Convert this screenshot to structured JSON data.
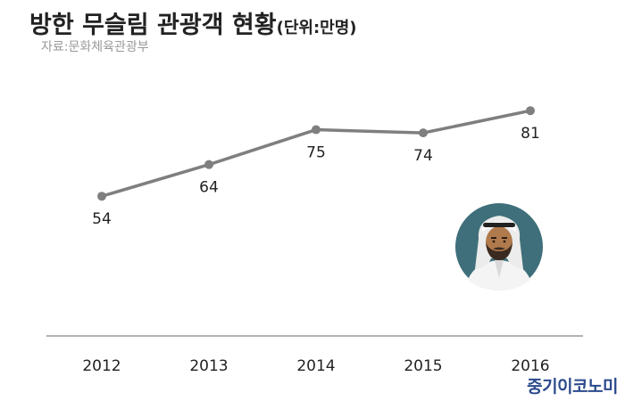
{
  "header": {
    "title": "방한 무슬림 관광객 현황",
    "unit": "(단위:만명)",
    "source": "자료:문화체육관광부"
  },
  "brand": "중기이코노미",
  "chart_data": {
    "type": "line",
    "title": "방한 무슬림 관광객 현황",
    "x": [
      "2012",
      "2013",
      "2014",
      "2015",
      "2016"
    ],
    "series": [
      {
        "values": [
          54,
          64,
          75,
          74,
          81
        ]
      }
    ],
    "ylim": [
      40,
      85
    ],
    "grid": false,
    "line_color": "#7f7f7f",
    "axis_color": "#999999"
  },
  "illustration": {
    "icon": "muslim-man-avatar-icon",
    "bg_color": "#3f6f7a"
  }
}
